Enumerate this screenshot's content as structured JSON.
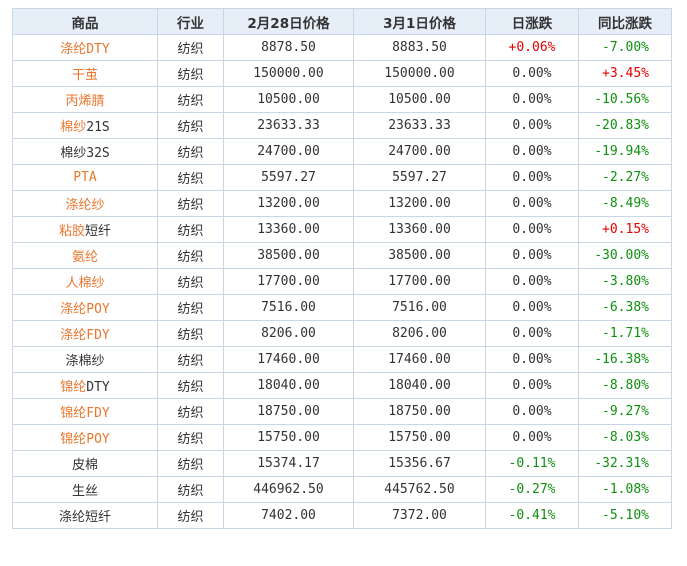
{
  "headers": [
    "商品",
    "行业",
    "2月28日价格",
    "3月1日价格",
    "日涨跌",
    "同比涨跌"
  ],
  "colors": {
    "link": "#e8772e",
    "up": "#e60000",
    "down": "#109010",
    "header_bg": "#e6eef8",
    "border": "#c8d6e8"
  },
  "rows": [
    {
      "name": "涤纶DTY",
      "name_parts": [
        {
          "t": "涤纶DTY",
          "link": true
        }
      ],
      "industry": "纺织",
      "price_0228": "8878.50",
      "price_0301": "8883.50",
      "daily_change": "+0.06%",
      "daily_dir": "pos",
      "yoy_change": "-7.00%",
      "yoy_dir": "neg"
    },
    {
      "name": "干茧",
      "name_parts": [
        {
          "t": "干茧",
          "link": true
        }
      ],
      "industry": "纺织",
      "price_0228": "150000.00",
      "price_0301": "150000.00",
      "daily_change": "0.00%",
      "daily_dir": "zero",
      "yoy_change": "+3.45%",
      "yoy_dir": "pos"
    },
    {
      "name": "丙烯腈",
      "name_parts": [
        {
          "t": "丙烯腈",
          "link": true
        }
      ],
      "industry": "纺织",
      "price_0228": "10500.00",
      "price_0301": "10500.00",
      "daily_change": "0.00%",
      "daily_dir": "zero",
      "yoy_change": "-10.56%",
      "yoy_dir": "neg"
    },
    {
      "name": "棉纱21S",
      "name_parts": [
        {
          "t": "棉纱",
          "link": true
        },
        {
          "t": "21S",
          "link": false
        }
      ],
      "industry": "纺织",
      "price_0228": "23633.33",
      "price_0301": "23633.33",
      "daily_change": "0.00%",
      "daily_dir": "zero",
      "yoy_change": "-20.83%",
      "yoy_dir": "neg"
    },
    {
      "name": "棉纱32S",
      "name_parts": [
        {
          "t": "棉纱32S",
          "link": false
        }
      ],
      "industry": "纺织",
      "price_0228": "24700.00",
      "price_0301": "24700.00",
      "daily_change": "0.00%",
      "daily_dir": "zero",
      "yoy_change": "-19.94%",
      "yoy_dir": "neg"
    },
    {
      "name": "PTA",
      "name_parts": [
        {
          "t": "PTA",
          "link": true
        }
      ],
      "industry": "纺织",
      "price_0228": "5597.27",
      "price_0301": "5597.27",
      "daily_change": "0.00%",
      "daily_dir": "zero",
      "yoy_change": "-2.27%",
      "yoy_dir": "neg"
    },
    {
      "name": "涤纶纱",
      "name_parts": [
        {
          "t": "涤纶纱",
          "link": true
        }
      ],
      "industry": "纺织",
      "price_0228": "13200.00",
      "price_0301": "13200.00",
      "daily_change": "0.00%",
      "daily_dir": "zero",
      "yoy_change": "-8.49%",
      "yoy_dir": "neg"
    },
    {
      "name": "粘胶短纤",
      "name_parts": [
        {
          "t": "粘胶",
          "link": true
        },
        {
          "t": "短纤",
          "link": false
        }
      ],
      "industry": "纺织",
      "price_0228": "13360.00",
      "price_0301": "13360.00",
      "daily_change": "0.00%",
      "daily_dir": "zero",
      "yoy_change": "+0.15%",
      "yoy_dir": "pos"
    },
    {
      "name": "氨纶",
      "name_parts": [
        {
          "t": "氨纶",
          "link": true
        }
      ],
      "industry": "纺织",
      "price_0228": "38500.00",
      "price_0301": "38500.00",
      "daily_change": "0.00%",
      "daily_dir": "zero",
      "yoy_change": "-30.00%",
      "yoy_dir": "neg"
    },
    {
      "name": "人棉纱",
      "name_parts": [
        {
          "t": "人棉纱",
          "link": true
        }
      ],
      "industry": "纺织",
      "price_0228": "17700.00",
      "price_0301": "17700.00",
      "daily_change": "0.00%",
      "daily_dir": "zero",
      "yoy_change": "-3.80%",
      "yoy_dir": "neg"
    },
    {
      "name": "涤纶POY",
      "name_parts": [
        {
          "t": "涤纶POY",
          "link": true
        }
      ],
      "industry": "纺织",
      "price_0228": "7516.00",
      "price_0301": "7516.00",
      "daily_change": "0.00%",
      "daily_dir": "zero",
      "yoy_change": "-6.38%",
      "yoy_dir": "neg"
    },
    {
      "name": "涤纶FDY",
      "name_parts": [
        {
          "t": "涤纶FDY",
          "link": true
        }
      ],
      "industry": "纺织",
      "price_0228": "8206.00",
      "price_0301": "8206.00",
      "daily_change": "0.00%",
      "daily_dir": "zero",
      "yoy_change": "-1.71%",
      "yoy_dir": "neg"
    },
    {
      "name": "涤棉纱",
      "name_parts": [
        {
          "t": "涤棉纱",
          "link": false
        }
      ],
      "industry": "纺织",
      "price_0228": "17460.00",
      "price_0301": "17460.00",
      "daily_change": "0.00%",
      "daily_dir": "zero",
      "yoy_change": "-16.38%",
      "yoy_dir": "neg"
    },
    {
      "name": "锦纶DTY",
      "name_parts": [
        {
          "t": "锦纶",
          "link": true
        },
        {
          "t": "DTY",
          "link": false
        }
      ],
      "industry": "纺织",
      "price_0228": "18040.00",
      "price_0301": "18040.00",
      "daily_change": "0.00%",
      "daily_dir": "zero",
      "yoy_change": "-8.80%",
      "yoy_dir": "neg"
    },
    {
      "name": "锦纶FDY",
      "name_parts": [
        {
          "t": "锦纶FDY",
          "link": true
        }
      ],
      "industry": "纺织",
      "price_0228": "18750.00",
      "price_0301": "18750.00",
      "daily_change": "0.00%",
      "daily_dir": "zero",
      "yoy_change": "-9.27%",
      "yoy_dir": "neg"
    },
    {
      "name": "锦纶POY",
      "name_parts": [
        {
          "t": "锦纶POY",
          "link": true
        }
      ],
      "industry": "纺织",
      "price_0228": "15750.00",
      "price_0301": "15750.00",
      "daily_change": "0.00%",
      "daily_dir": "zero",
      "yoy_change": "-8.03%",
      "yoy_dir": "neg"
    },
    {
      "name": "皮棉",
      "name_parts": [
        {
          "t": "皮棉",
          "link": false
        }
      ],
      "industry": "纺织",
      "price_0228": "15374.17",
      "price_0301": "15356.67",
      "daily_change": "-0.11%",
      "daily_dir": "neg",
      "yoy_change": "-32.31%",
      "yoy_dir": "neg"
    },
    {
      "name": "生丝",
      "name_parts": [
        {
          "t": "生丝",
          "link": false
        }
      ],
      "industry": "纺织",
      "price_0228": "446962.50",
      "price_0301": "445762.50",
      "daily_change": "-0.27%",
      "daily_dir": "neg",
      "yoy_change": "-1.08%",
      "yoy_dir": "neg"
    },
    {
      "name": "涤纶短纤",
      "name_parts": [
        {
          "t": "涤纶短纤",
          "link": false
        }
      ],
      "industry": "纺织",
      "price_0228": "7402.00",
      "price_0301": "7372.00",
      "daily_change": "-0.41%",
      "daily_dir": "neg",
      "yoy_change": "-5.10%",
      "yoy_dir": "neg"
    }
  ]
}
